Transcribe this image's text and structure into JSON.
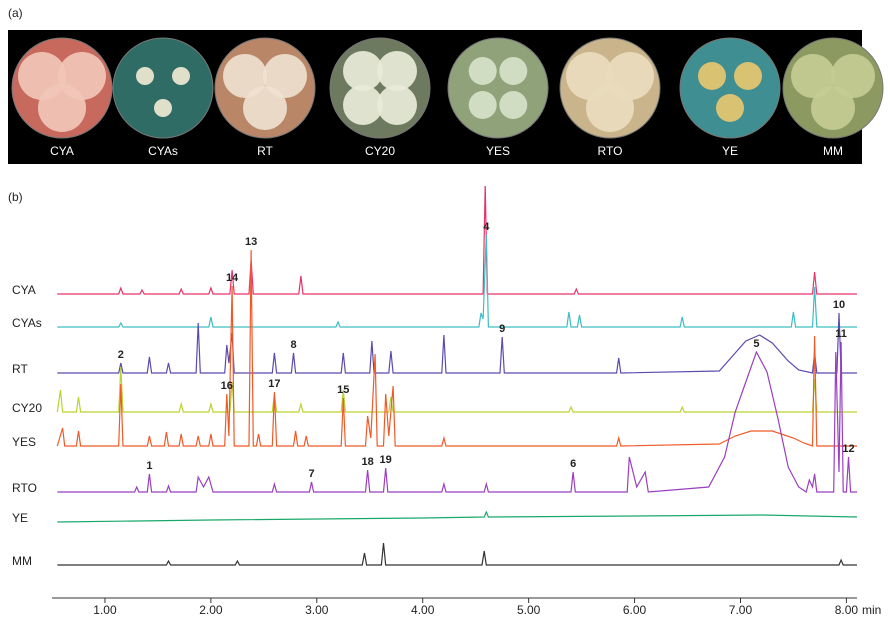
{
  "panel_a": {
    "label": "(a)",
    "plates": [
      "CYA",
      "CYAs",
      "RT",
      "CY20",
      "YES",
      "RTO",
      "YE",
      "MM"
    ]
  },
  "chart_data": {
    "type": "line",
    "label": "(b)",
    "x_label": "min",
    "xlim": [
      0.5,
      8.1
    ],
    "xticks": [
      {
        "value": 1,
        "label": "1.00"
      },
      {
        "value": 2,
        "label": "2.00"
      },
      {
        "value": 3,
        "label": "3.00"
      },
      {
        "value": 4,
        "label": "4.00"
      },
      {
        "value": 5,
        "label": "5.00"
      },
      {
        "value": 6,
        "label": "6.00"
      },
      {
        "value": 7,
        "label": "7.00"
      },
      {
        "value": 8,
        "label": "8.00"
      }
    ],
    "series": [
      {
        "name": "CYA",
        "color": "#e8336a",
        "x": [
          0.55,
          1.13,
          1.15,
          1.17,
          1.33,
          1.35,
          1.37,
          1.7,
          1.72,
          1.74,
          1.98,
          2,
          2.02,
          2.18,
          2.2,
          2.22,
          2.36,
          2.38,
          2.4,
          2.83,
          2.85,
          2.87,
          4.57,
          4.59,
          4.61,
          5.43,
          5.45,
          5.47,
          7.68,
          7.7,
          7.72,
          8.1
        ],
        "values": [
          0,
          0,
          6,
          0,
          0,
          4,
          0,
          0,
          5,
          0,
          0,
          6,
          0,
          0,
          24,
          0,
          0,
          34,
          0,
          0,
          18,
          0,
          0,
          110,
          0,
          0,
          5,
          0,
          0,
          22,
          0,
          0
        ]
      },
      {
        "name": "CYAs",
        "color": "#3dbdc4",
        "x": [
          0.55,
          1.13,
          1.15,
          1.17,
          1.98,
          2,
          2.02,
          3.18,
          3.2,
          3.22,
          4.53,
          4.55,
          4.57,
          4.6,
          4.62,
          5.36,
          5.38,
          5.4,
          5.46,
          5.48,
          5.5,
          6.43,
          6.45,
          6.47,
          7.48,
          7.5,
          7.52,
          7.68,
          7.7,
          7.72,
          8.1
        ],
        "values": [
          0,
          0,
          4,
          0,
          0,
          10,
          0,
          0,
          5,
          0,
          0,
          14,
          8,
          92,
          0,
          0,
          15,
          0,
          0,
          12,
          0,
          0,
          10,
          0,
          0,
          15,
          0,
          0,
          40,
          0,
          0
        ]
      },
      {
        "name": "RT",
        "color": "#5a4bb0",
        "x": [
          0.55,
          1.13,
          1.15,
          1.17,
          1.4,
          1.42,
          1.44,
          1.58,
          1.6,
          1.62,
          1.86,
          1.88,
          1.9,
          2.13,
          2.15,
          2.17,
          2.2,
          2.22,
          2.58,
          2.6,
          2.62,
          2.76,
          2.78,
          2.8,
          3.23,
          3.25,
          3.27,
          3.5,
          3.52,
          3.54,
          3.68,
          3.7,
          3.72,
          4.18,
          4.2,
          4.22,
          4.73,
          4.75,
          4.77,
          5.83,
          5.85,
          5.87,
          6.8,
          6.95,
          7.05,
          7.18,
          7.3,
          7.45,
          7.55,
          7.68,
          7.7,
          7.72,
          7.91,
          7.93,
          7.95,
          8.1
        ],
        "values": [
          0,
          0,
          10,
          0,
          0,
          16,
          0,
          0,
          10,
          0,
          0,
          50,
          0,
          0,
          28,
          10,
          40,
          0,
          0,
          20,
          0,
          0,
          20,
          0,
          0,
          20,
          0,
          0,
          32,
          0,
          0,
          22,
          0,
          0,
          38,
          0,
          0,
          36,
          0,
          0,
          15,
          0,
          2,
          20,
          32,
          38,
          30,
          12,
          3,
          0,
          20,
          0,
          0,
          60,
          0,
          0
        ]
      },
      {
        "name": "CY20",
        "color": "#b8d430",
        "x": [
          0.55,
          0.58,
          0.6,
          0.73,
          0.75,
          0.77,
          1.13,
          1.15,
          1.17,
          1.7,
          1.72,
          1.74,
          1.98,
          2,
          2.02,
          2.18,
          2.2,
          2.22,
          2.58,
          2.6,
          2.62,
          2.83,
          2.85,
          2.87,
          3.23,
          3.25,
          3.27,
          3.68,
          3.7,
          3.72,
          5.38,
          5.4,
          5.42,
          6.43,
          6.45,
          6.47,
          7.68,
          7.7,
          7.72,
          8.1
        ],
        "values": [
          0,
          22,
          0,
          0,
          15,
          0,
          0,
          45,
          0,
          0,
          8,
          0,
          0,
          8,
          0,
          0,
          30,
          0,
          0,
          18,
          0,
          0,
          8,
          0,
          0,
          22,
          0,
          0,
          15,
          0,
          0,
          5,
          0,
          0,
          5,
          0,
          0,
          33,
          0,
          0
        ]
      },
      {
        "name": "YES",
        "color": "#f05a28",
        "x": [
          0.55,
          0.6,
          0.62,
          0.73,
          0.75,
          0.77,
          1.13,
          1.15,
          1.17,
          1.4,
          1.42,
          1.44,
          1.56,
          1.58,
          1.6,
          1.7,
          1.72,
          1.74,
          1.86,
          1.88,
          1.9,
          1.98,
          2,
          2.02,
          2.13,
          2.15,
          2.17,
          2.2,
          2.22,
          2.36,
          2.38,
          2.4,
          2.43,
          2.45,
          2.47,
          2.58,
          2.6,
          2.62,
          2.78,
          2.8,
          2.82,
          2.88,
          2.9,
          2.92,
          3.23,
          3.25,
          3.27,
          3.46,
          3.48,
          3.51,
          3.55,
          3.57,
          3.63,
          3.65,
          3.68,
          3.72,
          3.74,
          4.18,
          4.2,
          4.22,
          5.83,
          5.85,
          5.87,
          6.8,
          6.95,
          7.1,
          7.3,
          7.5,
          7.6,
          7.68,
          7.7,
          7.72,
          8.1
        ],
        "values": [
          0,
          18,
          0,
          0,
          15,
          0,
          0,
          62,
          0,
          0,
          10,
          0,
          0,
          14,
          0,
          0,
          12,
          0,
          0,
          10,
          0,
          0,
          12,
          0,
          0,
          52,
          10,
          160,
          0,
          0,
          196,
          0,
          0,
          12,
          0,
          0,
          54,
          0,
          0,
          15,
          0,
          0,
          10,
          0,
          0,
          48,
          0,
          0,
          30,
          8,
          92,
          0,
          0,
          52,
          10,
          60,
          0,
          0,
          8,
          0,
          0,
          8,
          0,
          2,
          10,
          15,
          15,
          8,
          3,
          0,
          110,
          0,
          0
        ]
      },
      {
        "name": "RTO",
        "color": "#9b3fc0",
        "x": [
          0.55,
          1.28,
          1.3,
          1.32,
          1.4,
          1.42,
          1.44,
          1.58,
          1.6,
          1.62,
          1.86,
          1.88,
          1.93,
          1.98,
          2.02,
          2.58,
          2.6,
          2.62,
          2.93,
          2.95,
          2.97,
          3.46,
          3.48,
          3.5,
          3.63,
          3.65,
          3.67,
          4.18,
          4.2,
          4.22,
          4.58,
          4.6,
          4.62,
          5.4,
          5.42,
          5.44,
          5.93,
          5.95,
          6.02,
          6.1,
          6.13,
          6.7,
          6.85,
          6.95,
          7.05,
          7.15,
          7.25,
          7.35,
          7.45,
          7.55,
          7.62,
          7.65,
          7.68,
          7.7,
          7.72,
          7.88,
          7.9,
          7.93,
          7.95,
          7.97,
          8,
          8.02,
          8.04,
          8.1
        ],
        "values": [
          0,
          0,
          5,
          0,
          0,
          18,
          0,
          0,
          6,
          0,
          0,
          15,
          5,
          15,
          0,
          0,
          8,
          0,
          0,
          10,
          0,
          0,
          22,
          0,
          0,
          24,
          0,
          0,
          8,
          0,
          0,
          8,
          0,
          0,
          20,
          0,
          0,
          35,
          5,
          20,
          0,
          5,
          35,
          80,
          110,
          140,
          120,
          75,
          25,
          5,
          0,
          12,
          5,
          18,
          0,
          0,
          140,
          20,
          150,
          0,
          0,
          35,
          0,
          0
        ]
      },
      {
        "name": "YE",
        "color": "#1aa86a",
        "x": [
          0.55,
          2,
          4,
          4.58,
          4.6,
          4.62,
          6,
          7.2,
          8.1
        ],
        "values": [
          0,
          2,
          4,
          5,
          10,
          5,
          6,
          7,
          5
        ]
      },
      {
        "name": "MM",
        "color": "#333333",
        "x": [
          0.55,
          1.58,
          1.6,
          1.62,
          2.23,
          2.25,
          2.27,
          3.43,
          3.45,
          3.47,
          3.61,
          3.63,
          3.65,
          4.56,
          4.58,
          4.6,
          7.93,
          7.95,
          7.97,
          8.1
        ],
        "values": [
          0,
          0,
          4,
          0,
          0,
          4,
          0,
          0,
          12,
          0,
          0,
          22,
          0,
          0,
          14,
          0,
          0,
          5,
          0,
          0
        ]
      }
    ],
    "annotations": [
      {
        "text": "1",
        "series": 5,
        "x": 1.42
      },
      {
        "text": "2",
        "series": 2,
        "x": 1.15
      },
      {
        "text": "4",
        "series": 1,
        "x": 4.6
      },
      {
        "text": "5",
        "series": 5,
        "x": 7.15
      },
      {
        "text": "6",
        "series": 5,
        "x": 5.42
      },
      {
        "text": "7",
        "series": 5,
        "x": 2.95
      },
      {
        "text": "8",
        "series": 2,
        "x": 2.78
      },
      {
        "text": "9",
        "series": 2,
        "x": 4.75
      },
      {
        "text": "10",
        "series": 2,
        "x": 7.93
      },
      {
        "text": "11",
        "series": 5,
        "x": 7.95
      },
      {
        "text": "12",
        "series": 5,
        "x": 8.02
      },
      {
        "text": "13",
        "series": 4,
        "x": 2.38
      },
      {
        "text": "14",
        "series": 4,
        "x": 2.2
      },
      {
        "text": "15",
        "series": 4,
        "x": 3.25
      },
      {
        "text": "16",
        "series": 4,
        "x": 2.15
      },
      {
        "text": "17",
        "series": 4,
        "x": 2.6
      },
      {
        "text": "18",
        "series": 5,
        "x": 3.48
      },
      {
        "text": "19",
        "series": 5,
        "x": 3.65
      }
    ]
  }
}
